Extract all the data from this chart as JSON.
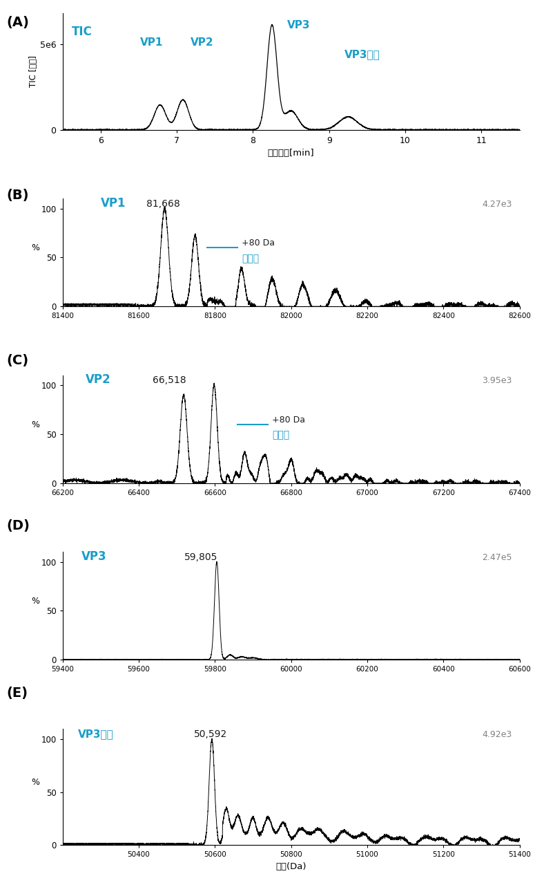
{
  "cyan_color": "#1A9EC9",
  "black_color": "#1a1a1a",
  "gray_color": "#888888",
  "panel_A": {
    "label": "(A)",
    "title": "TIC",
    "ylabel": "TIC [计数]",
    "xlabel": "保留时间[min]",
    "xlim": [
      5.5,
      11.5
    ],
    "ylim": [
      0,
      6800000.0
    ],
    "ytick_label": "5e6",
    "ytick_val": 5000000.0
  },
  "panel_B": {
    "label": "(B)",
    "protein": "VP1",
    "mass_label": "81,668",
    "mass_val": 81668,
    "intensity_label": "4.27e3",
    "xlim": [
      81400,
      82600
    ],
    "ylim": [
      0,
      110
    ],
    "phospho_x1": 81748,
    "phospho_x2": 81760,
    "annotation_text": "+80 Da",
    "annotation_sub": "磷酸化"
  },
  "panel_C": {
    "label": "(C)",
    "protein": "VP2",
    "mass_label": "66,518",
    "mass_val": 66518,
    "intensity_label": "3.95e3",
    "xlim": [
      66200,
      67400
    ],
    "ylim": [
      0,
      110
    ],
    "phospho_x1": 66598,
    "annotation_text": "+80 Da",
    "annotation_sub": "磷酸化"
  },
  "panel_D": {
    "label": "(D)",
    "protein": "VP3",
    "mass_label": "59,805",
    "mass_val": 59805,
    "intensity_label": "2.47e5",
    "xlim": [
      59400,
      60600
    ],
    "ylim": [
      0,
      110
    ]
  },
  "panel_E": {
    "label": "(E)",
    "protein": "VP3片段",
    "mass_label": "50,592",
    "mass_val": 50592,
    "intensity_label": "4.92e3",
    "xlim": [
      50200,
      51400
    ],
    "ylim": [
      0,
      110
    ],
    "xlabel": "质量(Da)"
  }
}
